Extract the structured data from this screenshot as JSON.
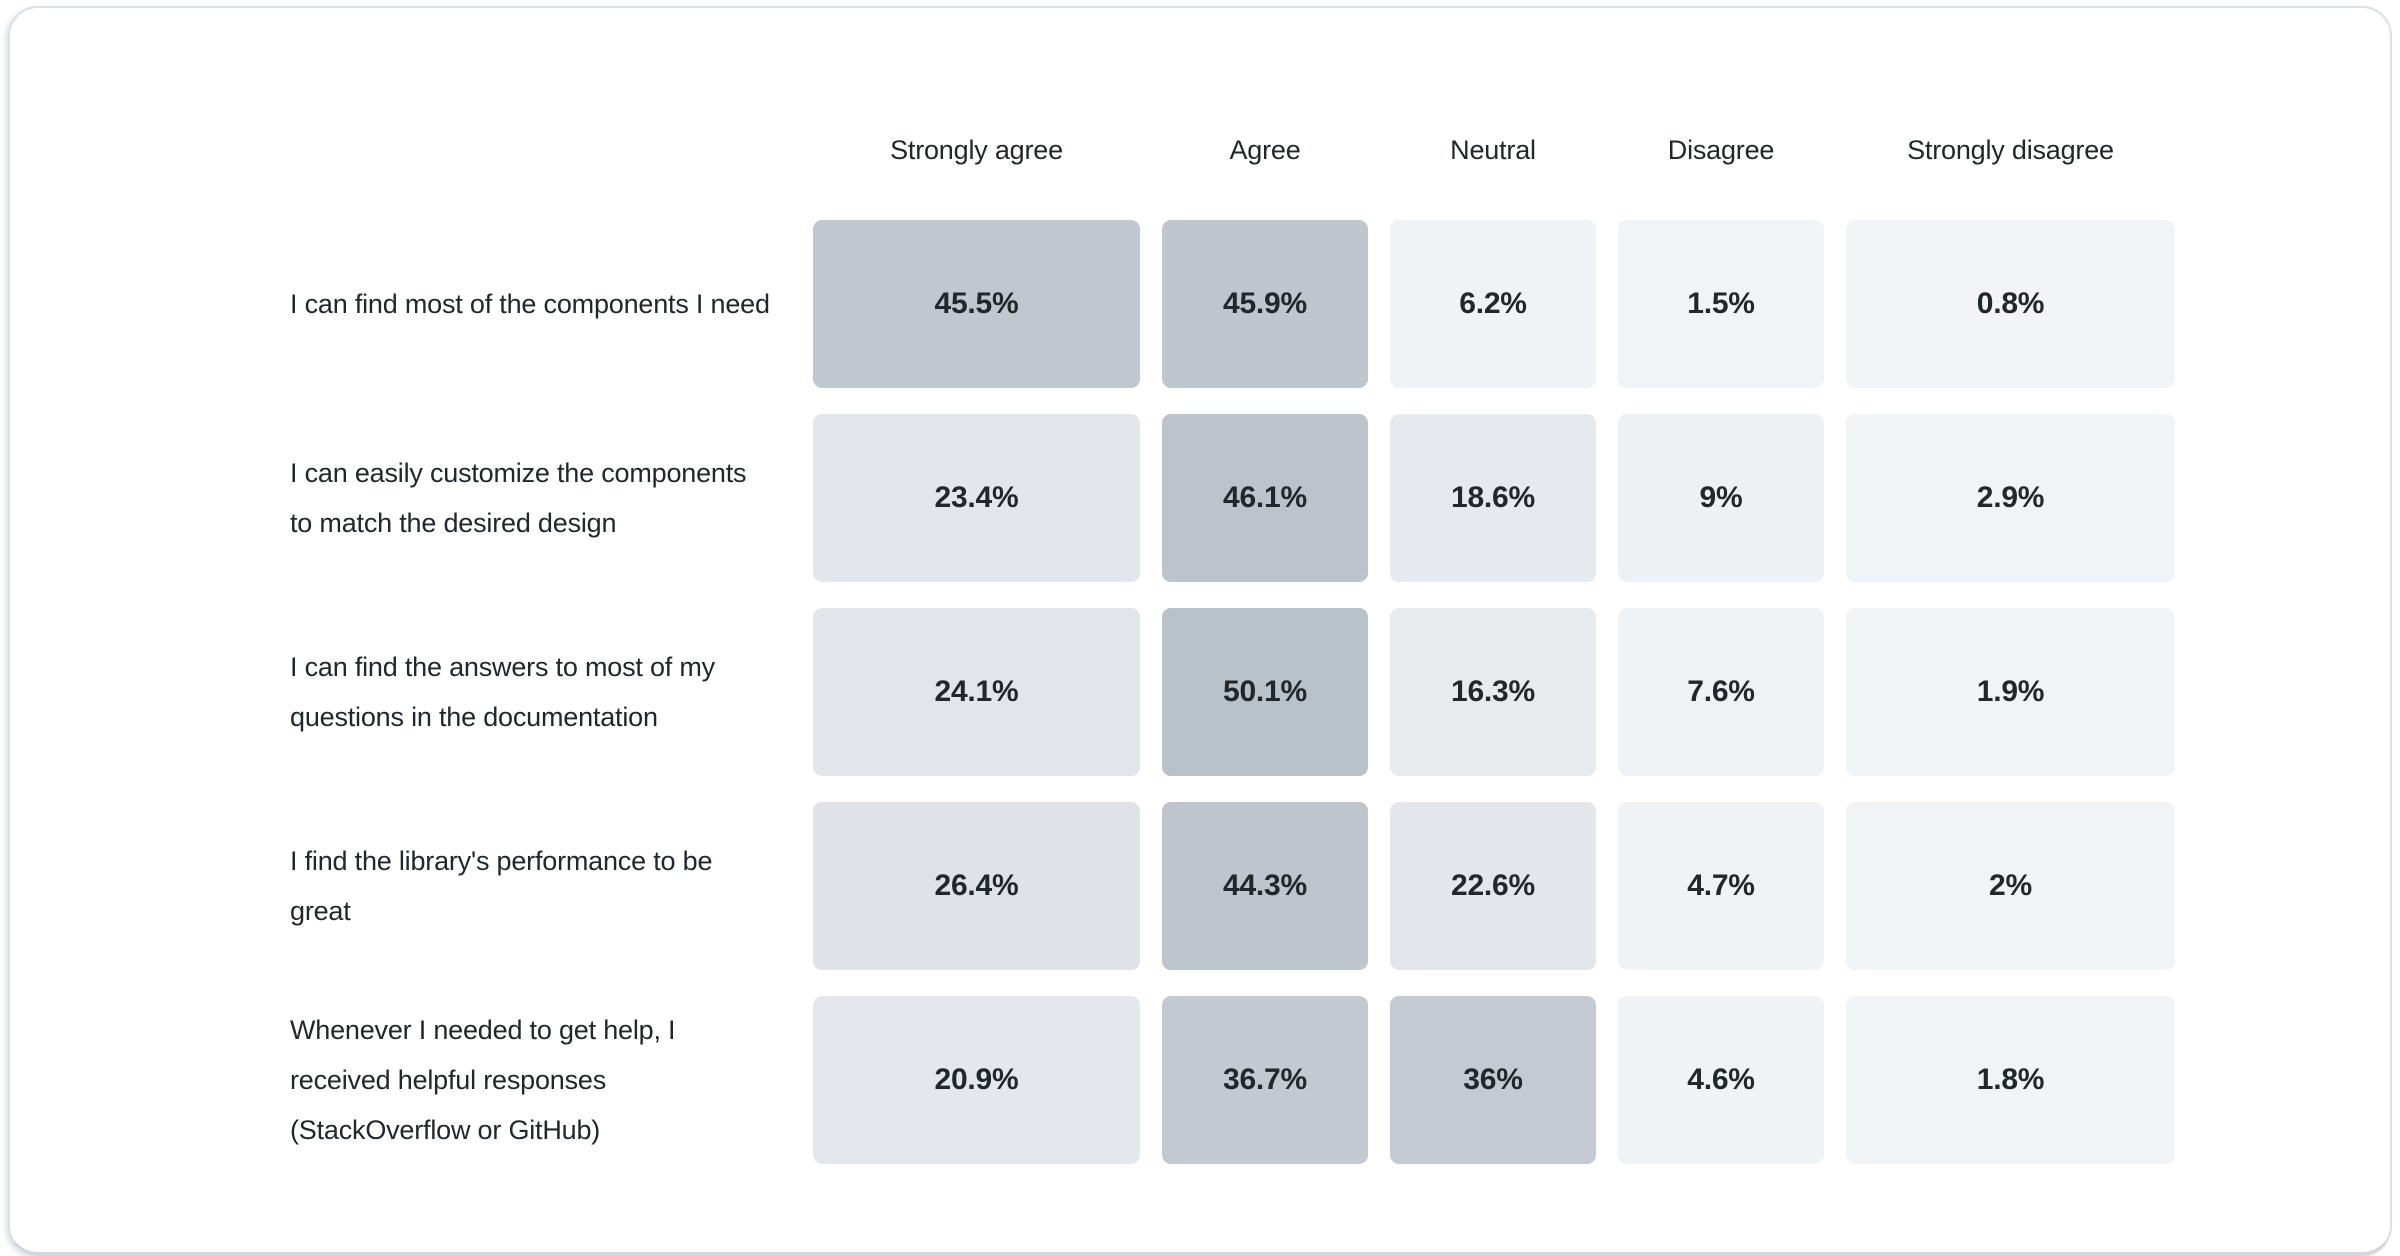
{
  "chart_data": {
    "type": "heatmap",
    "title": "",
    "value_unit": "%",
    "text_color": "#21272a",
    "palette": {
      "high": "#b9c1c9",
      "low": "#f2f4f7"
    },
    "columns": [
      "Strongly agree",
      "Agree",
      "Neutral",
      "Disagree",
      "Strongly disagree"
    ],
    "rows": [
      {
        "label": "I can find most of the components I need",
        "cells": [
          {
            "display": "45.5%",
            "value": 45.5,
            "color": "#c1c7ce"
          },
          {
            "display": "45.9%",
            "value": 45.9,
            "color": "#c0c6cd"
          },
          {
            "display": "6.2%",
            "value": 6.2,
            "color": "#f0f3f6"
          },
          {
            "display": "1.5%",
            "value": 1.5,
            "color": "#f1f4f7"
          },
          {
            "display": "0.8%",
            "value": 0.8,
            "color": "#f2f4f7"
          }
        ]
      },
      {
        "label": "I can easily customize the components to match the desired design",
        "cells": [
          {
            "display": "23.4%",
            "value": 23.4,
            "color": "#e3e7ec"
          },
          {
            "display": "46.1%",
            "value": 46.1,
            "color": "#bcc3cb"
          },
          {
            "display": "18.6%",
            "value": 18.6,
            "color": "#e6e9ed"
          },
          {
            "display": "9%",
            "value": 9.0,
            "color": "#eef1f4"
          },
          {
            "display": "2.9%",
            "value": 2.9,
            "color": "#f1f4f7"
          }
        ]
      },
      {
        "label": "I can find the answers to most of my questions in the documentation",
        "cells": [
          {
            "display": "24.1%",
            "value": 24.1,
            "color": "#e2e6eb"
          },
          {
            "display": "50.1%",
            "value": 50.1,
            "color": "#b9c1c9"
          },
          {
            "display": "16.3%",
            "value": 16.3,
            "color": "#e8ebee"
          },
          {
            "display": "7.6%",
            "value": 7.6,
            "color": "#eff2f5"
          },
          {
            "display": "1.9%",
            "value": 1.9,
            "color": "#f1f4f7"
          }
        ]
      },
      {
        "label": "I find the library's performance to be great",
        "cells": [
          {
            "display": "26.4%",
            "value": 26.4,
            "color": "#dfe3e8"
          },
          {
            "display": "44.3%",
            "value": 44.3,
            "color": "#bfc5cd"
          },
          {
            "display": "22.6%",
            "value": 22.6,
            "color": "#e3e7eb"
          },
          {
            "display": "4.7%",
            "value": 4.7,
            "color": "#f0f3f6"
          },
          {
            "display": "2%",
            "value": 2.0,
            "color": "#f1f4f7"
          }
        ]
      },
      {
        "label": "Whenever I needed to get help, I received helpful responses (StackOverflow or GitHub)",
        "cells": [
          {
            "display": "20.9%",
            "value": 20.9,
            "color": "#e4e8ed"
          },
          {
            "display": "36.7%",
            "value": 36.7,
            "color": "#c3c9d0"
          },
          {
            "display": "36%",
            "value": 36.0,
            "color": "#c4cad1"
          },
          {
            "display": "4.6%",
            "value": 4.6,
            "color": "#f0f3f6"
          },
          {
            "display": "1.8%",
            "value": 1.8,
            "color": "#f1f4f7"
          }
        ]
      }
    ]
  }
}
